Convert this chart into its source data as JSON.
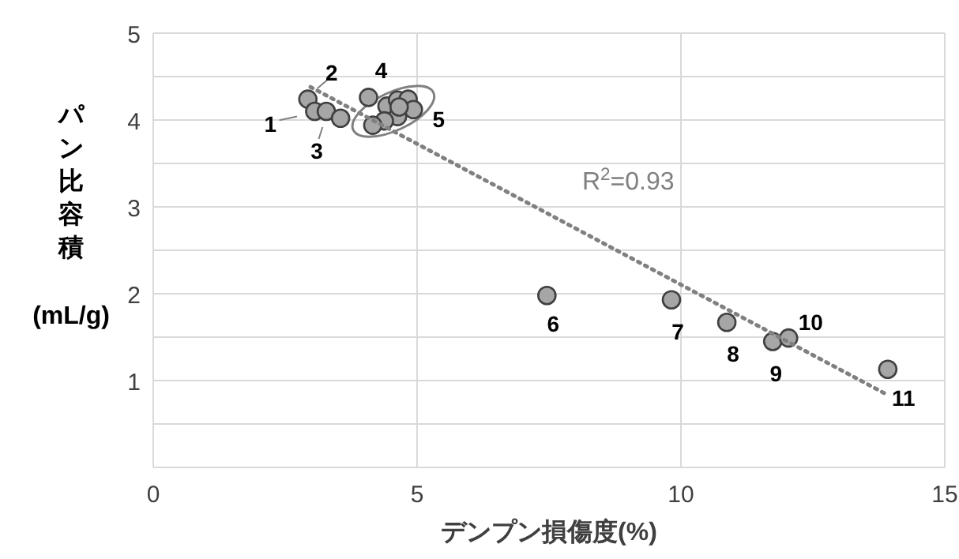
{
  "chart_data": {
    "type": "scatter",
    "xlabel": "デンプン損傷度(%)",
    "ylabel": "パン比容積 (mL/g)",
    "xlim": [
      0,
      15
    ],
    "xticks": [
      0,
      5,
      10,
      15
    ],
    "ylim": [
      0,
      5
    ],
    "yticks": [
      {
        "value": 0.5,
        "label": null
      },
      1,
      {
        "value": 1.5,
        "label": null
      },
      2,
      {
        "value": 2.5,
        "label": null
      },
      3,
      {
        "value": 3.5,
        "label": null
      },
      4,
      {
        "value": 4.5,
        "label": null
      },
      5
    ],
    "grid": true,
    "series": [
      {
        "marker": "circle",
        "color": "#a6a6a6",
        "x": [
          2.93,
          3.06,
          3.28,
          3.55,
          4.08,
          4.43,
          4.63,
          4.83,
          4.93,
          4.63,
          4.38,
          4.16,
          4.66,
          7.46,
          9.82,
          10.87,
          11.74,
          12.04,
          13.92
        ],
        "values": [
          4.24,
          4.1,
          4.1,
          4.02,
          4.26,
          4.16,
          4.23,
          4.24,
          4.12,
          4.04,
          3.99,
          3.94,
          4.15,
          1.98,
          1.93,
          1.67,
          1.45,
          1.49,
          1.13
        ]
      },
      {
        "type": "line",
        "color": "#808080",
        "line_style": "dotted",
        "x": [
          2.98,
          13.9
        ],
        "values": [
          4.38,
          0.84
        ]
      }
    ],
    "annotations": [
      {
        "text": "1",
        "x": 3.06,
        "y": 4.1
      },
      {
        "text": "2",
        "x": 2.93,
        "y": 4.24
      },
      {
        "text": "3",
        "x": 3.28,
        "y": 4.1
      },
      {
        "text": "4",
        "x": 4.08,
        "y": 4.26
      },
      {
        "text": "5",
        "x": 4.93,
        "y": 4.12
      },
      {
        "text": "6",
        "x": 7.46,
        "y": 1.98
      },
      {
        "text": "7",
        "x": 9.82,
        "y": 1.93
      },
      {
        "text": "8",
        "x": 10.87,
        "y": 1.67
      },
      {
        "text": "9",
        "x": 11.74,
        "y": 1.45
      },
      {
        "text": "10",
        "x": 12.04,
        "y": 1.49
      },
      {
        "text": "11",
        "x": 13.92,
        "y": 1.13
      },
      "R$^{2}$=0.93"
    ]
  }
}
